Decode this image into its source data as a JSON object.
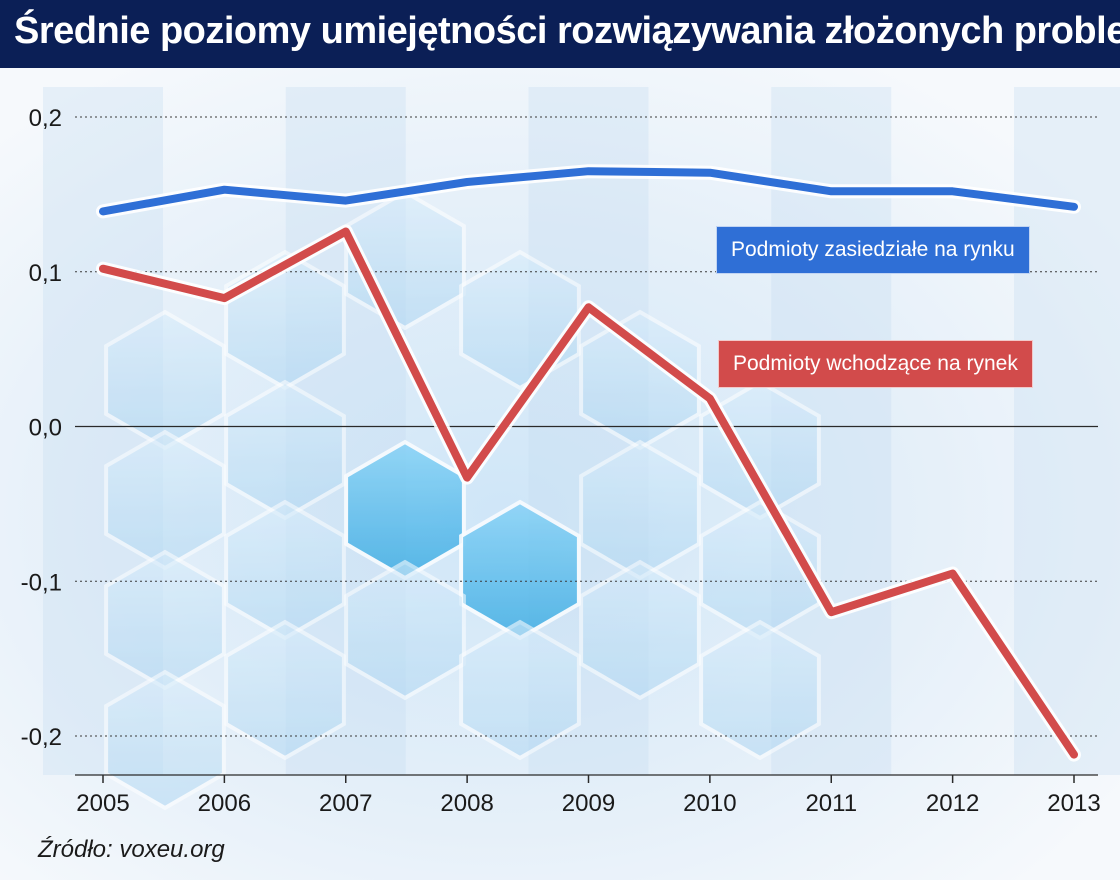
{
  "title": "Średnie poziomy umiejętności rozwiązywania złożonych problemów",
  "source": "Źródło: voxeu.org",
  "chart_data": {
    "type": "line",
    "x": [
      2005,
      2006,
      2007,
      2008,
      2009,
      2010,
      2011,
      2012,
      2013
    ],
    "ylim": [
      -0.225,
      0.215
    ],
    "yticks": [
      0.2,
      0.1,
      0.0,
      -0.1,
      -0.2
    ],
    "ytick_labels": [
      "0,2",
      "0,1",
      "0,0",
      "-0,1",
      "-0,2"
    ],
    "grid": true,
    "series": [
      {
        "name": "Podmioty zasiedziałe na rynku",
        "color": "#2f6fd6",
        "values": [
          0.139,
          0.153,
          0.146,
          0.158,
          0.165,
          0.164,
          0.152,
          0.152,
          0.142
        ]
      },
      {
        "name": "Podmioty wchodzące na rynek",
        "color": "#d24b4b",
        "values": [
          0.102,
          0.083,
          0.126,
          -0.033,
          0.077,
          0.018,
          -0.12,
          -0.095,
          -0.212
        ]
      }
    ]
  }
}
